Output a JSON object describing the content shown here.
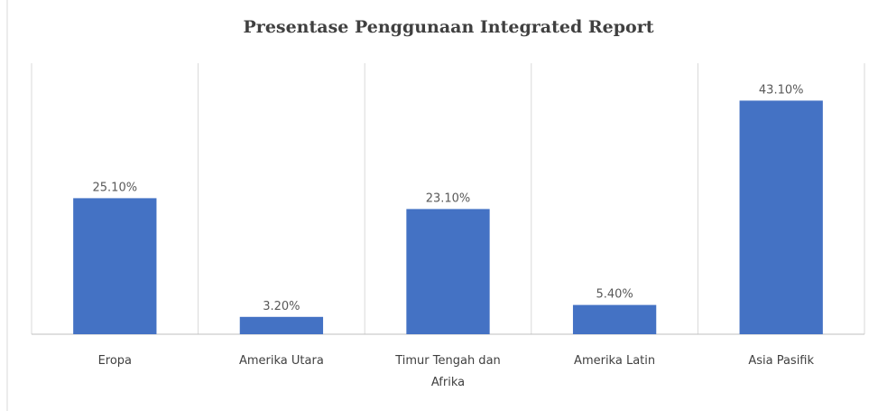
{
  "chart_data": {
    "type": "bar",
    "title": "Presentase Penggunaan Integrated Report",
    "categories": [
      "Eropa",
      "Amerika Utara",
      "Timur Tengah dan Afrika",
      "Amerika Latin",
      "Asia Pasifik"
    ],
    "values": [
      25.1,
      3.2,
      23.1,
      5.4,
      43.1
    ],
    "value_labels": [
      "25.10%",
      "3.20%",
      "23.10%",
      "5.40%",
      "43.10%"
    ],
    "color": "#4472c4",
    "ylim": [
      0,
      50
    ]
  }
}
